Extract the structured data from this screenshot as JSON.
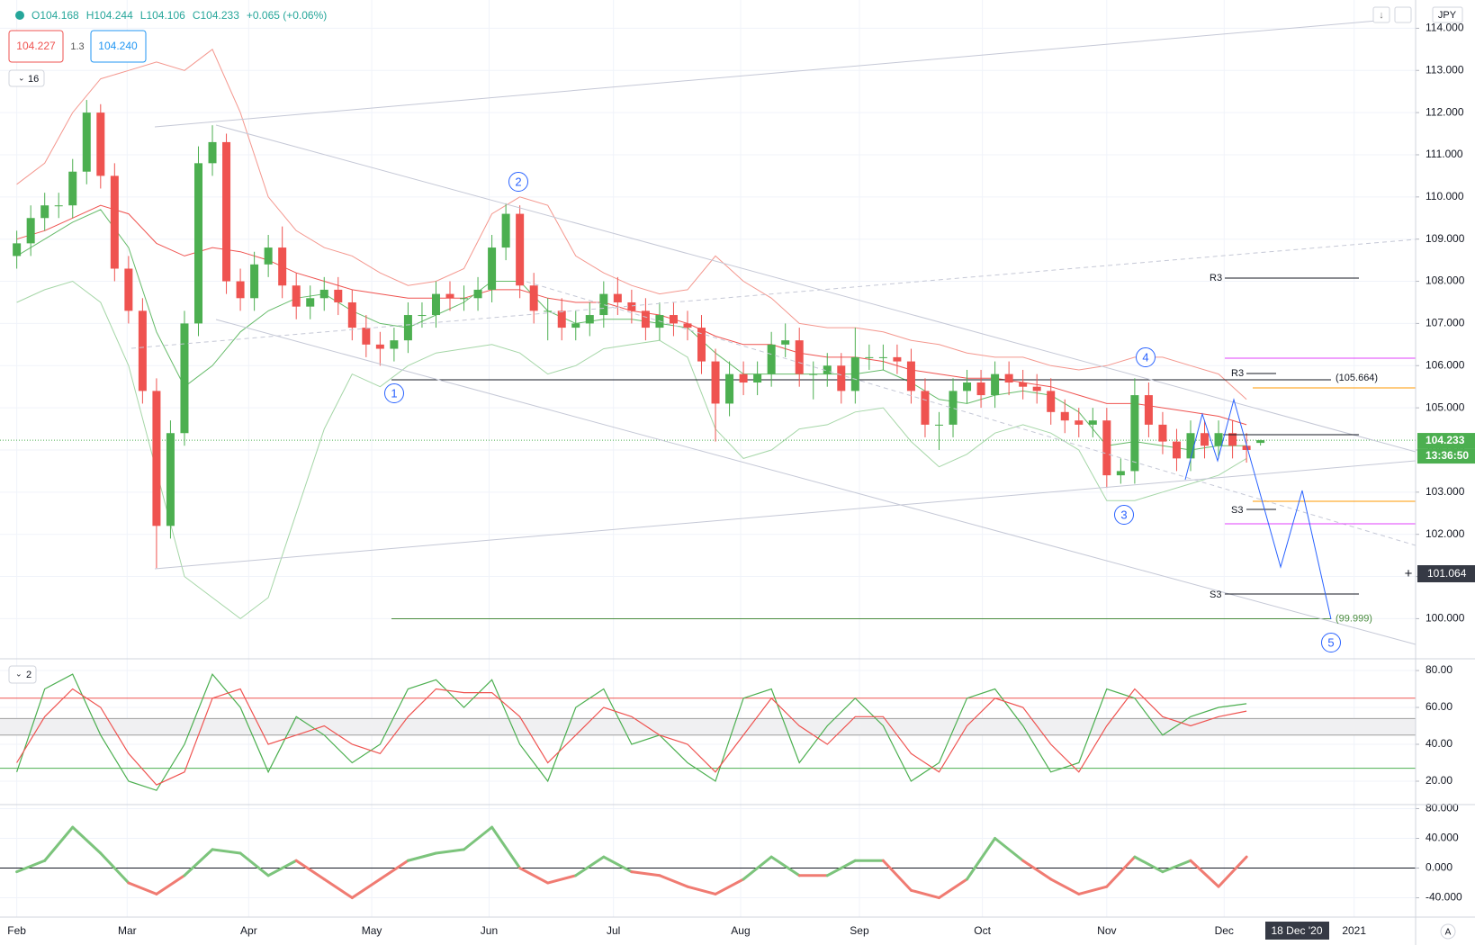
{
  "header": {
    "ohlc": [
      "O104.168",
      "H104.244",
      "L104.106",
      "C104.233",
      "+0.065 (+0.06%)"
    ],
    "bid": "104.227",
    "spread": "1.3",
    "ask": "104.240",
    "indicator_count": "16",
    "currency": "JPY",
    "oscillator_count": "2",
    "cursor_price": "101.064",
    "countdown": "13:36:50",
    "cursor_date": "18 Dec '20",
    "scale_mode": "A"
  },
  "chart_data": [
    {
      "type": "candlestick",
      "up_color": "#4caf50",
      "down_color": "#ef5350",
      "grid": true,
      "xlim": [
        -1.2,
        100.1
      ],
      "xticks": [
        {
          "value": 0,
          "label": "Feb"
        },
        {
          "value": 7.9,
          "label": "Mar"
        },
        {
          "value": 16.6,
          "label": "Apr"
        },
        {
          "value": 25.4,
          "label": "May"
        },
        {
          "value": 33.8,
          "label": "Jun"
        },
        {
          "value": 42.7,
          "label": "Jul"
        },
        {
          "value": 51.8,
          "label": "Aug"
        },
        {
          "value": 60.3,
          "label": "Sep"
        },
        {
          "value": 69.1,
          "label": "Oct"
        },
        {
          "value": 78.0,
          "label": "Nov"
        },
        {
          "value": 86.4,
          "label": "Dec"
        },
        {
          "value": 95.7,
          "label": "2021"
        }
      ],
      "ylim": [
        99.07,
        114.67
      ],
      "yticks": [
        {
          "value": 100,
          "label": "100.000"
        },
        {
          "value": 101,
          "label": "101.000"
        },
        {
          "value": 102,
          "label": "102.000"
        },
        {
          "value": 103,
          "label": "103.000"
        },
        {
          "value": 104,
          "label": "104.000"
        },
        {
          "value": 105,
          "label": "105.000"
        },
        {
          "value": 106,
          "label": "106.000"
        },
        {
          "value": 107,
          "label": "107.000"
        },
        {
          "value": 108,
          "label": "108.000"
        },
        {
          "value": 109,
          "label": "109.000"
        },
        {
          "value": 110,
          "label": "110.000"
        },
        {
          "value": 111,
          "label": "111.000"
        },
        {
          "value": 112,
          "label": "112.000"
        },
        {
          "value": 113,
          "label": "113.000"
        },
        {
          "value": 114,
          "label": "114.000"
        }
      ],
      "open": [
        108.6,
        108.9,
        109.5,
        109.8,
        109.8,
        110.6,
        112.0,
        110.5,
        108.3,
        107.3,
        105.4,
        102.2,
        104.4,
        107.0,
        110.8,
        111.3,
        108.0,
        107.6,
        108.4,
        108.8,
        107.9,
        107.4,
        107.6,
        107.8,
        107.5,
        106.9,
        106.5,
        106.4,
        106.6,
        107.2,
        107.2,
        107.7,
        107.6,
        107.6,
        107.8,
        108.8,
        109.6,
        107.9,
        107.3,
        107.3,
        106.9,
        107.0,
        107.2,
        107.7,
        107.5,
        107.3,
        106.9,
        107.2,
        107.0,
        106.9,
        106.1,
        105.1,
        105.8,
        105.6,
        105.8,
        106.5,
        106.6,
        105.8,
        105.8,
        106.0,
        105.4,
        106.2,
        106.2,
        106.2,
        106.1,
        105.4,
        104.6,
        104.6,
        105.4,
        105.6,
        105.3,
        105.8,
        105.6,
        105.5,
        105.4,
        104.9,
        104.7,
        104.6,
        104.7,
        103.4,
        103.5,
        105.3,
        104.6,
        104.2,
        103.8,
        104.4,
        104.1,
        104.4,
        104.1,
        104.168
      ],
      "high": [
        109.2,
        109.8,
        110.1,
        110.1,
        110.9,
        112.3,
        112.2,
        110.8,
        108.6,
        107.6,
        105.7,
        104.7,
        107.3,
        111.2,
        111.7,
        111.5,
        108.3,
        108.7,
        109.1,
        109.3,
        108.2,
        107.9,
        108.1,
        108.1,
        107.8,
        107.2,
        106.8,
        106.9,
        107.5,
        107.5,
        108.0,
        108.0,
        107.9,
        108.1,
        109.1,
        109.85,
        109.8,
        108.2,
        107.6,
        107.6,
        107.3,
        107.5,
        108.0,
        108.1,
        107.8,
        107.6,
        107.5,
        107.5,
        107.3,
        107.2,
        106.4,
        106.1,
        106.1,
        106.1,
        106.8,
        107.0,
        106.9,
        106.1,
        106.3,
        106.3,
        106.9,
        106.5,
        106.5,
        106.5,
        106.4,
        105.7,
        104.9,
        105.7,
        105.9,
        105.9,
        106.1,
        106.1,
        105.9,
        105.8,
        105.7,
        105.2,
        105.0,
        105.0,
        105.0,
        103.8,
        105.7,
        105.6,
        104.9,
        104.5,
        104.7,
        104.7,
        104.7,
        104.7,
        104.4,
        104.244
      ],
      "low": [
        108.3,
        108.6,
        109.2,
        109.5,
        109.5,
        110.3,
        110.2,
        108.0,
        107.0,
        105.1,
        101.2,
        101.9,
        104.1,
        106.7,
        110.5,
        107.7,
        107.3,
        107.3,
        108.1,
        107.6,
        107.1,
        107.1,
        107.3,
        107.2,
        106.6,
        106.2,
        106.0,
        106.1,
        106.3,
        106.9,
        106.9,
        107.3,
        107.3,
        107.3,
        107.5,
        108.5,
        107.6,
        107.0,
        106.6,
        106.6,
        106.6,
        106.7,
        106.9,
        107.2,
        107.0,
        106.6,
        106.6,
        106.7,
        106.6,
        105.8,
        104.2,
        104.8,
        105.3,
        105.3,
        105.5,
        106.2,
        105.5,
        105.2,
        105.5,
        105.1,
        105.1,
        105.9,
        105.9,
        105.8,
        105.1,
        104.3,
        104.0,
        104.3,
        105.1,
        105.0,
        105.0,
        105.3,
        105.2,
        105.1,
        104.6,
        104.4,
        104.3,
        104.3,
        103.1,
        103.2,
        103.2,
        104.3,
        103.9,
        103.5,
        103.5,
        103.8,
        103.8,
        103.8,
        103.7,
        104.106
      ],
      "close": [
        108.9,
        109.5,
        109.8,
        109.8,
        110.6,
        112.0,
        110.5,
        108.3,
        107.3,
        105.4,
        102.2,
        104.4,
        107.0,
        110.8,
        111.3,
        108.0,
        107.6,
        108.4,
        108.8,
        107.9,
        107.4,
        107.6,
        107.8,
        107.5,
        106.9,
        106.5,
        106.4,
        106.6,
        107.2,
        107.2,
        107.7,
        107.6,
        107.6,
        107.8,
        108.8,
        109.6,
        107.9,
        107.3,
        107.3,
        106.9,
        107.0,
        107.2,
        107.7,
        107.5,
        107.3,
        106.9,
        107.2,
        107.0,
        106.9,
        106.1,
        105.1,
        105.8,
        105.6,
        105.8,
        106.5,
        106.6,
        105.8,
        105.8,
        106.0,
        105.4,
        106.2,
        106.2,
        106.2,
        106.1,
        105.4,
        104.6,
        104.6,
        105.4,
        105.6,
        105.3,
        105.8,
        105.6,
        105.5,
        105.4,
        104.9,
        104.7,
        104.6,
        104.7,
        103.4,
        103.5,
        105.3,
        104.6,
        104.2,
        103.8,
        104.4,
        104.1,
        104.4,
        104.1,
        104.0,
        104.233
      ],
      "overlays": {
        "x": [
          0,
          2,
          4,
          6,
          8,
          10,
          12,
          14,
          16,
          18,
          20,
          22,
          24,
          26,
          28,
          30,
          32,
          34,
          36,
          38,
          40,
          42,
          44,
          46,
          48,
          50,
          52,
          54,
          56,
          58,
          60,
          62,
          64,
          66,
          68,
          70,
          72,
          74,
          76,
          78,
          80,
          82,
          84,
          86,
          88
        ],
        "lines": [
          {
            "color": "#ef5350",
            "values": [
              109.0,
              109.2,
              109.5,
              109.8,
              109.6,
              108.9,
              108.6,
              108.8,
              108.7,
              108.5,
              108.2,
              108.0,
              107.8,
              107.7,
              107.6,
              107.6,
              107.6,
              107.8,
              107.8,
              107.6,
              107.5,
              107.5,
              107.3,
              107.2,
              107.0,
              106.7,
              106.5,
              106.5,
              106.3,
              106.2,
              106.2,
              106.1,
              105.9,
              105.8,
              105.7,
              105.7,
              105.6,
              105.5,
              105.3,
              105.1,
              105.1,
              105.0,
              104.9,
              104.8,
              104.6
            ]
          },
          {
            "color": "#f4978e",
            "values": [
              110.3,
              110.8,
              112.0,
              112.8,
              113.0,
              113.2,
              113.0,
              113.5,
              112.0,
              110.0,
              109.2,
              108.8,
              108.6,
              108.2,
              107.9,
              108.0,
              108.3,
              109.6,
              110.0,
              109.8,
              108.6,
              108.2,
              107.9,
              107.7,
              107.8,
              108.6,
              108.0,
              107.6,
              107.0,
              106.9,
              106.9,
              106.8,
              106.6,
              106.5,
              106.3,
              106.2,
              106.2,
              106.0,
              105.9,
              106.0,
              106.2,
              106.2,
              106.0,
              105.8,
              105.2
            ]
          },
          {
            "color": "#66bb6a",
            "values": [
              108.6,
              109.0,
              109.4,
              109.7,
              108.8,
              106.8,
              105.5,
              106.0,
              106.8,
              107.3,
              107.6,
              107.7,
              107.3,
              107.0,
              106.9,
              107.2,
              107.5,
              108.0,
              108.0,
              107.3,
              107.0,
              107.1,
              107.1,
              107.0,
              106.9,
              106.3,
              105.8,
              105.8,
              105.8,
              105.8,
              105.8,
              105.9,
              105.6,
              105.2,
              105.1,
              105.3,
              105.4,
              105.3,
              104.9,
              104.1,
              104.2,
              104.1,
              104.0,
              104.1,
              104.1
            ]
          },
          {
            "color": "#a5d6a7",
            "values": [
              107.5,
              107.8,
              108.0,
              107.5,
              106.0,
              103.5,
              101.0,
              100.5,
              100.0,
              100.5,
              102.5,
              104.5,
              105.8,
              105.5,
              106.0,
              106.3,
              106.4,
              106.5,
              106.3,
              105.8,
              106.0,
              106.4,
              106.5,
              106.6,
              106.2,
              104.5,
              103.8,
              104.0,
              104.5,
              104.6,
              104.9,
              105.0,
              104.2,
              103.6,
              103.9,
              104.4,
              104.6,
              104.4,
              104.0,
              102.8,
              102.8,
              103.0,
              103.2,
              103.4,
              103.8
            ]
          }
        ]
      },
      "levels": [
        {
          "value": 105.664,
          "label": "(105.664)",
          "color": "#131722"
        },
        {
          "value": 99.999,
          "label": "(99.999)",
          "color": "#4a8c3f"
        }
      ],
      "wave_labels": [
        "1",
        "2",
        "3",
        "4",
        "5"
      ],
      "pivot_labels": [
        "R3",
        "R3",
        "S3",
        "S3"
      ]
    },
    {
      "type": "line",
      "grid": true,
      "x": [
        0,
        2,
        4,
        6,
        8,
        10,
        12,
        14,
        16,
        18,
        20,
        22,
        24,
        26,
        28,
        30,
        32,
        34,
        36,
        38,
        40,
        42,
        44,
        46,
        48,
        50,
        52,
        54,
        56,
        58,
        60,
        62,
        64,
        66,
        68,
        70,
        72,
        74,
        76,
        78,
        80,
        82,
        84,
        86,
        88
      ],
      "ylim": [
        7.8,
        84.9
      ],
      "yticks": [
        {
          "value": 20,
          "label": "20.00"
        },
        {
          "value": 40,
          "label": "40.00"
        },
        {
          "value": 60,
          "label": "60.00"
        },
        {
          "value": 80,
          "label": "80.00"
        }
      ],
      "hlines": [
        {
          "value": 65,
          "color": "#ef5350"
        },
        {
          "value": 54,
          "color": "#9e9e9e"
        },
        {
          "value": 45,
          "color": "#9e9e9e"
        },
        {
          "value": 27,
          "color": "#4caf50"
        }
      ],
      "band": {
        "from": 45,
        "to": 54,
        "color": "#f0f0f2"
      },
      "series": [
        {
          "color": "#4caf50",
          "values": [
            25,
            70,
            78,
            45,
            20,
            15,
            40,
            78,
            60,
            25,
            55,
            45,
            30,
            40,
            70,
            75,
            60,
            75,
            40,
            20,
            60,
            70,
            40,
            45,
            30,
            20,
            65,
            70,
            30,
            50,
            65,
            50,
            20,
            30,
            65,
            70,
            50,
            25,
            30,
            70,
            65,
            45,
            55,
            60,
            62
          ]
        },
        {
          "color": "#ef5350",
          "values": [
            30,
            55,
            70,
            60,
            35,
            18,
            25,
            65,
            70,
            40,
            45,
            50,
            40,
            35,
            55,
            70,
            68,
            68,
            55,
            30,
            45,
            60,
            55,
            45,
            40,
            25,
            45,
            65,
            50,
            40,
            55,
            55,
            35,
            25,
            50,
            65,
            60,
            40,
            25,
            50,
            70,
            55,
            50,
            55,
            58
          ]
        }
      ]
    },
    {
      "type": "line",
      "grid": true,
      "x": [
        0,
        2,
        4,
        6,
        8,
        10,
        12,
        14,
        16,
        18,
        20,
        22,
        24,
        26,
        28,
        30,
        32,
        34,
        36,
        38,
        40,
        42,
        44,
        46,
        48,
        50,
        52,
        54,
        56,
        58,
        60,
        62,
        64,
        66,
        68,
        70,
        72,
        74,
        76,
        78,
        80,
        82,
        84,
        86,
        88
      ],
      "ylim": [
        -66,
        83
      ],
      "yticks": [
        {
          "value": -40,
          "label": "-40.000"
        },
        {
          "value": 0,
          "label": "0.000"
        },
        {
          "value": 40,
          "label": "40.000"
        },
        {
          "value": 80,
          "label": "80.000"
        }
      ],
      "hlines": [
        {
          "value": 0,
          "color": "#131722"
        }
      ],
      "series": [
        {
          "color_above": "#7cc47c",
          "color_below": "#f07b72",
          "values": [
            -5,
            10,
            55,
            20,
            -20,
            -35,
            -10,
            25,
            20,
            -10,
            10,
            -15,
            -40,
            -15,
            10,
            20,
            25,
            55,
            0,
            -20,
            -10,
            15,
            -5,
            -10,
            -25,
            -35,
            -15,
            15,
            -10,
            -10,
            10,
            10,
            -30,
            -40,
            -15,
            40,
            10,
            -15,
            -35,
            -25,
            15,
            -5,
            10,
            -25,
            15
          ]
        }
      ]
    }
  ]
}
